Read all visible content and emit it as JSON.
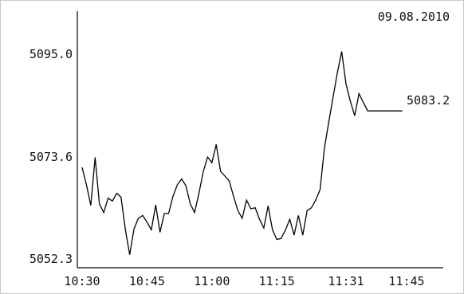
{
  "chart_data": {
    "type": "line",
    "title": "",
    "date_label": "09.08.2010",
    "last_value_label": "5083.2",
    "xlabel": "",
    "ylabel": "",
    "x_ticks": [
      "10:30",
      "10:45",
      "11:00",
      "11:15",
      "11:31",
      "11:45"
    ],
    "y_ticks": [
      "5095.0",
      "5073.6",
      "5052.3"
    ],
    "ylim": [
      5050.5,
      5104.0
    ],
    "grid": false,
    "series": [
      {
        "color": "#000000",
        "x": [
          "10:30",
          "10:31",
          "10:32",
          "10:33",
          "10:34",
          "10:35",
          "10:36",
          "10:37",
          "10:38",
          "10:39",
          "10:40",
          "10:41",
          "10:42",
          "10:43",
          "10:44",
          "10:45",
          "10:46",
          "10:47",
          "10:48",
          "10:49",
          "10:50",
          "10:51",
          "10:52",
          "10:53",
          "10:54",
          "10:55",
          "10:56",
          "10:57",
          "10:58",
          "10:59",
          "11:00",
          "11:01",
          "11:02",
          "11:03",
          "11:04",
          "11:05",
          "11:06",
          "11:07",
          "11:08",
          "11:09",
          "11:10",
          "11:11",
          "11:12",
          "11:13",
          "11:14",
          "11:15",
          "11:16",
          "11:17",
          "11:18",
          "11:19",
          "11:20",
          "11:21",
          "11:22",
          "11:23",
          "11:24",
          "11:25",
          "11:26",
          "11:27",
          "11:28",
          "11:29",
          "11:30",
          "11:31",
          "11:32",
          "11:33",
          "11:34",
          "11:35",
          "11:36",
          "11:37",
          "11:38",
          "11:39",
          "11:40",
          "11:41",
          "11:42",
          "11:43",
          "11:44"
        ],
        "values": [
          5071.4,
          5067.8,
          5063.5,
          5073.5,
          5063.8,
          5062.0,
          5065.0,
          5064.4,
          5066.0,
          5065.2,
          5058.4,
          5053.2,
          5058.6,
          5060.8,
          5061.4,
          5060.0,
          5058.4,
          5063.6,
          5057.9,
          5061.8,
          5061.8,
          5065.4,
          5067.8,
          5069.0,
          5067.6,
          5063.8,
          5062.0,
          5066.0,
          5070.5,
          5073.6,
          5072.4,
          5076.2,
          5070.6,
          5069.6,
          5068.6,
          5065.4,
          5062.4,
          5060.8,
          5064.6,
          5062.8,
          5063.0,
          5060.6,
          5058.8,
          5063.4,
          5058.4,
          5056.4,
          5056.6,
          5058.4,
          5060.6,
          5057.3,
          5061.4,
          5057.3,
          5062.4,
          5063.0,
          5064.6,
          5066.8,
          5075.4,
          5080.8,
          5086.0,
          5091.2,
          5095.6,
          5088.8,
          5085.2,
          5082.2,
          5086.8,
          5085.0,
          5083.2,
          5083.2,
          5083.2,
          5083.2,
          5083.2,
          5083.2,
          5083.2,
          5083.2,
          5083.2
        ]
      }
    ]
  }
}
